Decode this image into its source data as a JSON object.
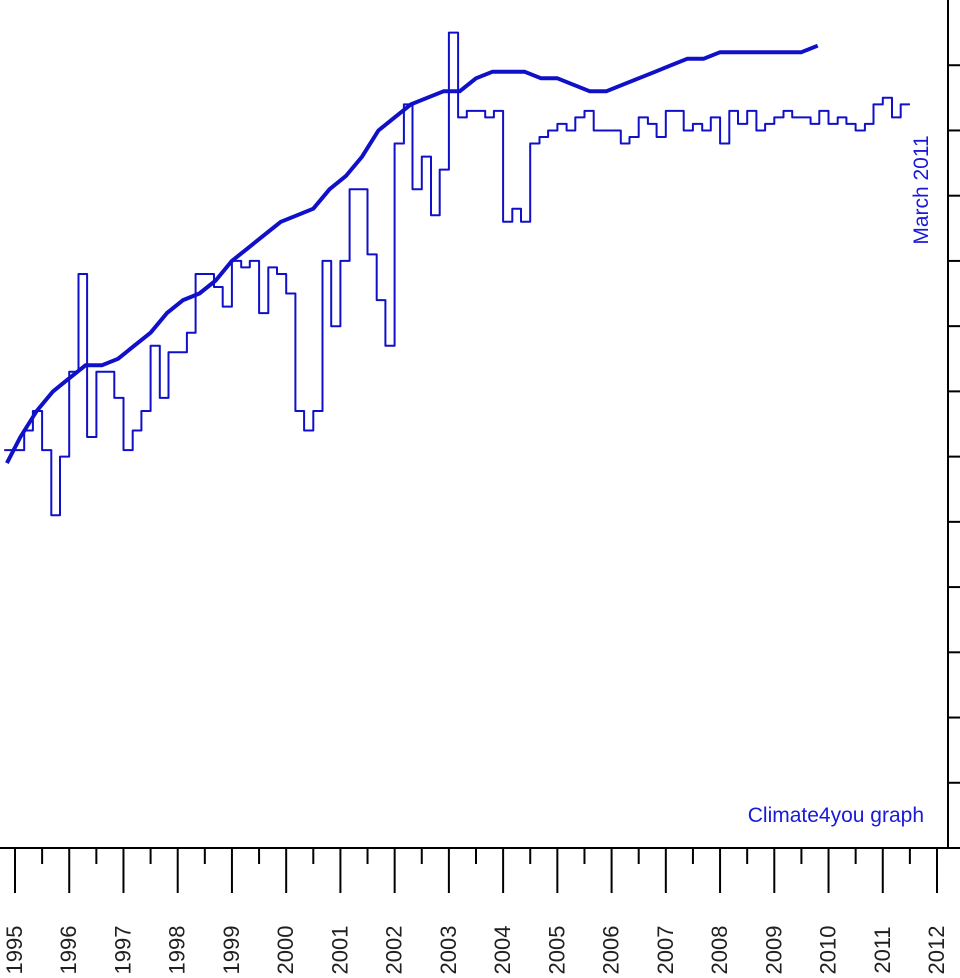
{
  "chart_data": {
    "type": "line",
    "title": "",
    "xlabel": "",
    "ylabel": "",
    "xlim": [
      1995,
      2012.3
    ],
    "ylim": [
      0,
      13
    ],
    "grid": false,
    "x_ticks": [
      "1995",
      "1996",
      "1997",
      "1998",
      "1999",
      "2000",
      "2001",
      "2002",
      "2003",
      "2004",
      "2005",
      "2006",
      "2007",
      "2008",
      "2009",
      "2010",
      "2011",
      "2012"
    ],
    "annotations": {
      "date_stamp": "March 2011",
      "credit": "Climate4you graph"
    },
    "colors": {
      "series": "#1010c8",
      "axis": "#000000"
    },
    "series": [
      {
        "name": "",
        "style": "step",
        "x": [
          1994.8,
          1995.0,
          1995.17,
          1995.33,
          1995.5,
          1995.67,
          1995.83,
          1996.0,
          1996.17,
          1996.33,
          1996.5,
          1996.67,
          1996.83,
          1997.0,
          1997.17,
          1997.33,
          1997.5,
          1997.67,
          1997.83,
          1998.0,
          1998.17,
          1998.33,
          1998.5,
          1998.67,
          1998.83,
          1999.0,
          1999.17,
          1999.33,
          1999.5,
          1999.67,
          1999.83,
          2000.0,
          2000.17,
          2000.33,
          2000.5,
          2000.67,
          2000.83,
          2001.0,
          2001.17,
          2001.33,
          2001.5,
          2001.67,
          2001.83,
          2002.0,
          2002.17,
          2002.33,
          2002.5,
          2002.67,
          2002.83,
          2003.0,
          2003.17,
          2003.33,
          2003.5,
          2003.67,
          2003.83,
          2004.0,
          2004.17,
          2004.33,
          2004.5,
          2004.67,
          2004.83,
          2005.0,
          2005.17,
          2005.33,
          2005.5,
          2005.67,
          2005.83,
          2006.0,
          2006.17,
          2006.33,
          2006.5,
          2006.67,
          2006.83,
          2007.0,
          2007.17,
          2007.33,
          2007.5,
          2007.67,
          2007.83,
          2008.0,
          2008.17,
          2008.33,
          2008.5,
          2008.67,
          2008.83,
          2009.0,
          2009.17,
          2009.33,
          2009.5,
          2009.67,
          2009.83,
          2010.0,
          2010.17,
          2010.33,
          2010.5,
          2010.67,
          2010.83,
          2011.0,
          2011.17,
          2011.33
        ],
        "y": [
          6.1,
          6.1,
          6.4,
          6.7,
          6.1,
          5.1,
          6.0,
          7.3,
          8.8,
          6.3,
          7.3,
          7.3,
          6.9,
          6.1,
          6.4,
          6.7,
          7.7,
          6.9,
          7.6,
          7.6,
          7.9,
          8.8,
          8.8,
          8.6,
          8.3,
          9.0,
          8.9,
          9.0,
          8.2,
          8.9,
          8.8,
          8.5,
          6.7,
          6.4,
          6.7,
          9.0,
          8.0,
          9.0,
          10.1,
          10.1,
          9.1,
          8.4,
          7.7,
          10.8,
          11.4,
          10.1,
          10.6,
          9.7,
          10.4,
          12.5,
          11.2,
          11.3,
          11.3,
          11.2,
          11.3,
          9.6,
          9.8,
          9.6,
          10.8,
          10.9,
          11.0,
          11.1,
          11.0,
          11.2,
          11.3,
          11.0,
          11.0,
          11.0,
          10.8,
          10.9,
          11.2,
          11.1,
          10.9,
          11.3,
          11.3,
          11.0,
          11.1,
          11.0,
          11.2,
          10.8,
          11.3,
          11.1,
          11.3,
          11.0,
          11.1,
          11.2,
          11.3,
          11.2,
          11.2,
          11.1,
          11.3,
          11.1,
          11.2,
          11.1,
          11.0,
          11.1,
          11.4,
          11.5,
          11.2,
          11.4
        ],
        "stroke_width": 2
      },
      {
        "name": "",
        "style": "line",
        "x": [
          1994.85,
          1995.1,
          1995.4,
          1995.7,
          1996.0,
          1996.3,
          1996.6,
          1996.9,
          1997.2,
          1997.5,
          1997.8,
          1998.1,
          1998.4,
          1998.7,
          1999.0,
          1999.3,
          1999.6,
          1999.9,
          2000.2,
          2000.5,
          2000.8,
          2001.1,
          2001.4,
          2001.7,
          2002.0,
          2002.3,
          2002.6,
          2002.9,
          2003.2,
          2003.5,
          2003.8,
          2004.1,
          2004.4,
          2004.7,
          2005.0,
          2005.3,
          2005.6,
          2005.9,
          2006.2,
          2006.5,
          2006.8,
          2007.1,
          2007.4,
          2007.7,
          2008.0,
          2008.3,
          2008.6,
          2008.9,
          2009.2,
          2009.5,
          2009.8
        ],
        "y": [
          5.9,
          6.3,
          6.7,
          7.0,
          7.2,
          7.4,
          7.4,
          7.5,
          7.7,
          7.9,
          8.2,
          8.4,
          8.5,
          8.7,
          9.0,
          9.2,
          9.4,
          9.6,
          9.7,
          9.8,
          10.1,
          10.3,
          10.6,
          11.0,
          11.2,
          11.4,
          11.5,
          11.6,
          11.6,
          11.8,
          11.9,
          11.9,
          11.9,
          11.8,
          11.8,
          11.7,
          11.6,
          11.6,
          11.7,
          11.8,
          11.9,
          12.0,
          12.1,
          12.1,
          12.2,
          12.2,
          12.2,
          12.2,
          12.2,
          12.2,
          12.3
        ],
        "stroke_width": 4
      }
    ]
  }
}
